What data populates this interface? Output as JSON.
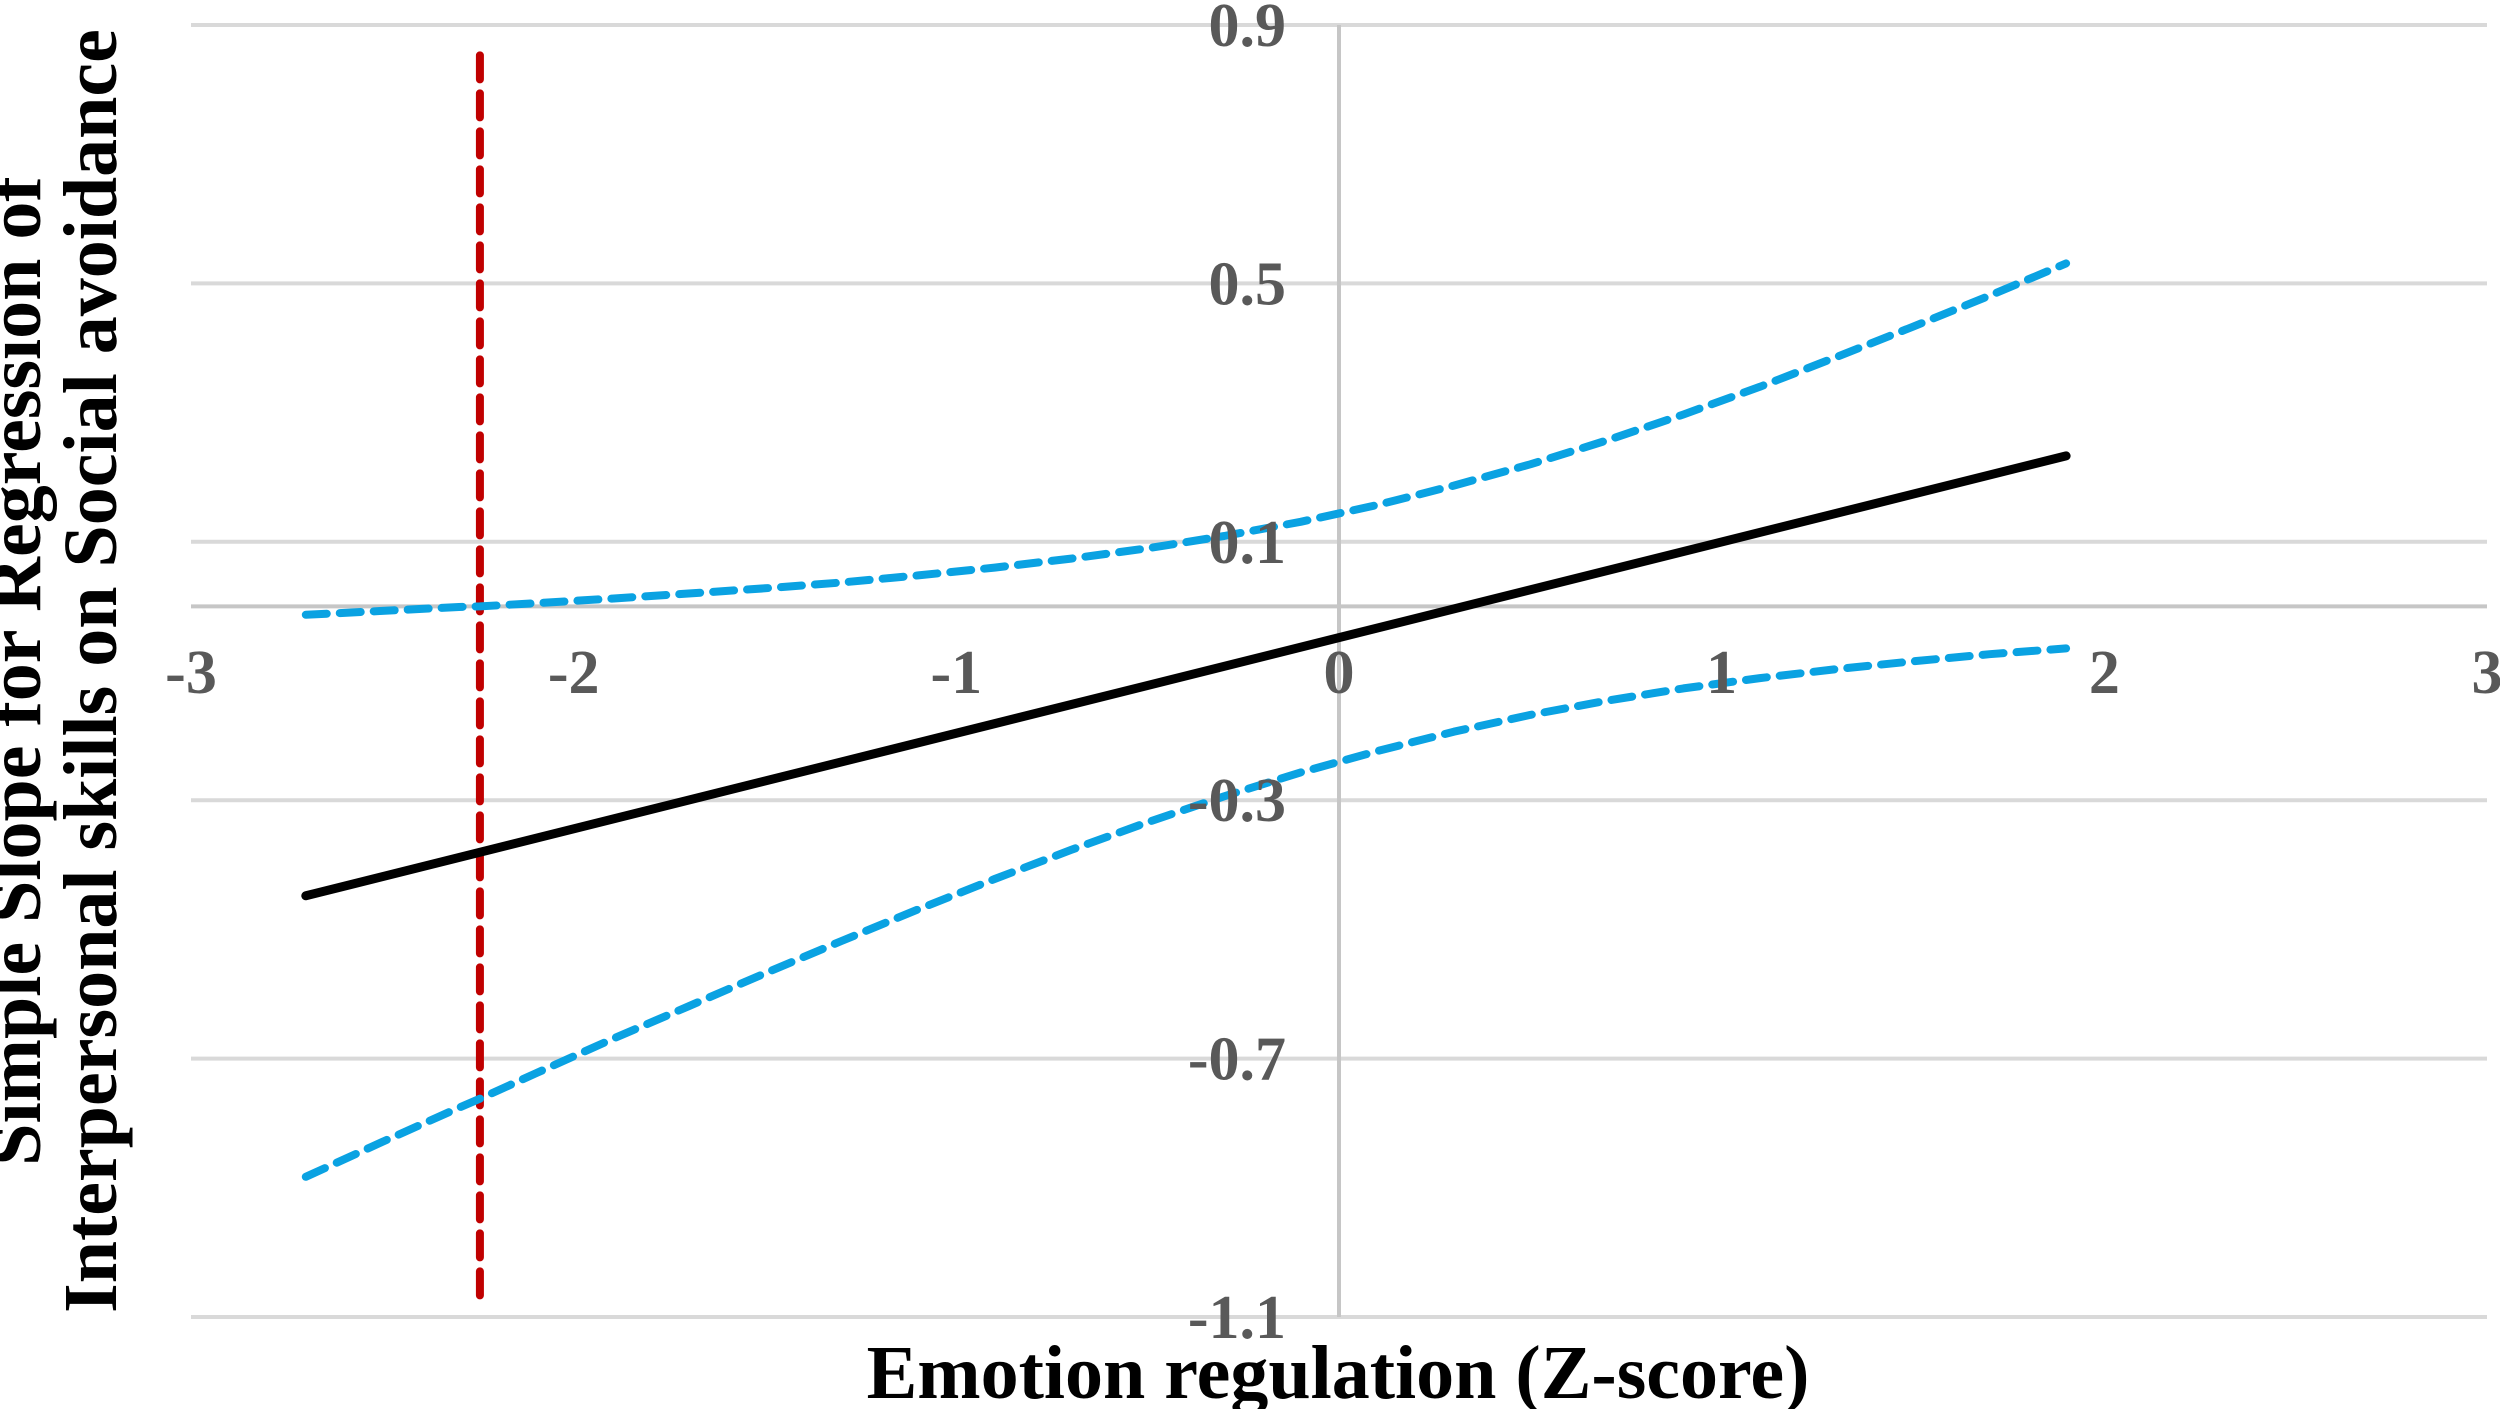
{
  "figure": {
    "x_axis_title": "Emotion regulation (Z-score)",
    "y_axis_title_line1": "Simple Slope for Regression of",
    "y_axis_title_line2": "Interpersonal skills on Social avoidance"
  },
  "axes": {
    "x_ticks": [
      -3,
      -2,
      -1,
      0,
      1,
      2,
      3
    ],
    "y_ticks": [
      0.9,
      0.5,
      0.1,
      -0.3,
      -0.7,
      -1.1
    ],
    "xlim": [
      -3,
      3
    ],
    "ylim": [
      -1.1,
      0.9
    ],
    "x_axis_at_y": 0,
    "y_axis_at_x": 0,
    "grid_color": "#D9D9D9",
    "axis_color": "#C6C6C6",
    "tick_label_color": "#595959"
  },
  "chart_data": {
    "type": "line",
    "title": "",
    "xlabel": "Emotion regulation (Z-score)",
    "ylabel": "Simple Slope for Regression of Interpersonal skills on Social avoidance",
    "xlim": [
      -3,
      3
    ],
    "ylim": [
      -1.1,
      0.9
    ],
    "grid": true,
    "legend": false,
    "series": [
      {
        "name": "simple-slope",
        "style": "solid",
        "color": "#000000",
        "width": 9,
        "points": [
          [
            -2.7,
            -0.448
          ],
          [
            1.9,
            0.233
          ]
        ]
      },
      {
        "name": "ci-upper",
        "style": "dashed",
        "color": "#0AA2E2",
        "width": 8,
        "dash": "21 13",
        "points": [
          [
            -2.7,
            -0.013
          ],
          [
            -2.5,
            -0.007
          ],
          [
            -2.3,
            -0.001
          ],
          [
            -2.245,
            0.0
          ],
          [
            -2.1,
            0.005
          ],
          [
            -1.9,
            0.012
          ],
          [
            -1.7,
            0.02
          ],
          [
            -1.5,
            0.028
          ],
          [
            -1.3,
            0.037
          ],
          [
            -1.1,
            0.048
          ],
          [
            -0.9,
            0.06
          ],
          [
            -0.7,
            0.074
          ],
          [
            -0.5,
            0.09
          ],
          [
            -0.3,
            0.109
          ],
          [
            -0.1,
            0.131
          ],
          [
            0.1,
            0.157
          ],
          [
            0.3,
            0.187
          ],
          [
            0.5,
            0.22
          ],
          [
            0.7,
            0.257
          ],
          [
            0.9,
            0.297
          ],
          [
            1.1,
            0.34
          ],
          [
            1.3,
            0.386
          ],
          [
            1.5,
            0.433
          ],
          [
            1.7,
            0.481
          ],
          [
            1.9,
            0.531
          ]
        ]
      },
      {
        "name": "ci-lower",
        "style": "dashed",
        "color": "#0AA2E2",
        "width": 8,
        "dash": "21 13",
        "points": [
          [
            -2.7,
            -0.883
          ],
          [
            -2.5,
            -0.829
          ],
          [
            -2.3,
            -0.776
          ],
          [
            -2.245,
            -0.762
          ],
          [
            -2.1,
            -0.723
          ],
          [
            -1.9,
            -0.67
          ],
          [
            -1.7,
            -0.619
          ],
          [
            -1.5,
            -0.568
          ],
          [
            -1.3,
            -0.518
          ],
          [
            -1.1,
            -0.469
          ],
          [
            -0.9,
            -0.422
          ],
          [
            -0.7,
            -0.377
          ],
          [
            -0.5,
            -0.334
          ],
          [
            -0.3,
            -0.294
          ],
          [
            -0.1,
            -0.257
          ],
          [
            0.1,
            -0.224
          ],
          [
            0.3,
            -0.194
          ],
          [
            0.5,
            -0.168
          ],
          [
            0.7,
            -0.146
          ],
          [
            0.9,
            -0.127
          ],
          [
            1.1,
            -0.111
          ],
          [
            1.3,
            -0.097
          ],
          [
            1.5,
            -0.085
          ],
          [
            1.7,
            -0.074
          ],
          [
            1.9,
            -0.065
          ]
        ]
      }
    ],
    "significance_line": {
      "name": "region-of-significance-boundary",
      "x": -2.245,
      "y_top": 0.853,
      "y_bottom": -1.087,
      "style": "dashed",
      "color": "#C00000",
      "width": 8,
      "dash": "24 14"
    }
  }
}
